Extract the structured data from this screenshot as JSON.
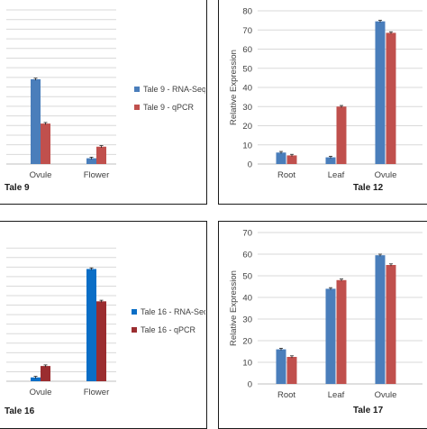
{
  "chart_data": [
    {
      "type": "bar",
      "title": "Tale 9",
      "categories": [
        "Ovule",
        "Flower"
      ],
      "series": [
        {
          "name": "Tale 9 - RNA-Seq",
          "values": [
            44,
            3
          ],
          "color": "#4a7ebb"
        },
        {
          "name": "Tale 9 - qPCR",
          "values": [
            21,
            9
          ],
          "color": "#c0504d"
        }
      ],
      "ylim": [
        0,
        80
      ],
      "legend": "right"
    },
    {
      "type": "bar",
      "title": "Tale 12",
      "categories": [
        "Root",
        "Leaf",
        "Ovule"
      ],
      "series": [
        {
          "values": [
            6,
            3.5,
            74.5
          ],
          "color": "#4a7ebb"
        },
        {
          "values": [
            4.5,
            30,
            68.5
          ],
          "color": "#c0504d"
        }
      ],
      "ylabel": "Relative Expression",
      "ylim": [
        0,
        80
      ],
      "yticks": [
        0,
        10,
        20,
        30,
        40,
        50,
        60,
        70,
        80
      ]
    },
    {
      "type": "bar",
      "title": "Tale 16",
      "categories": [
        "Ovule",
        "Flower"
      ],
      "series": [
        {
          "name": "Tale 16 - RNA-Seq",
          "values": [
            2,
            59
          ],
          "color": "#0a6ec6"
        },
        {
          "name": "Tale 16 - qPCR",
          "values": [
            8,
            42
          ],
          "color": "#9b2d30"
        }
      ],
      "ylim": [
        0,
        72
      ],
      "legend": "right"
    },
    {
      "type": "bar",
      "title": "Tale 17",
      "categories": [
        "Root",
        "Leaf",
        "Ovule"
      ],
      "series": [
        {
          "values": [
            16,
            44,
            59.5
          ],
          "color": "#4a7ebb"
        },
        {
          "values": [
            12.5,
            48,
            55
          ],
          "color": "#c0504d"
        }
      ],
      "ylabel": "Relative Expression",
      "ylim": [
        0,
        70
      ],
      "yticks": [
        0,
        10,
        20,
        30,
        40,
        50,
        60,
        70
      ]
    }
  ]
}
